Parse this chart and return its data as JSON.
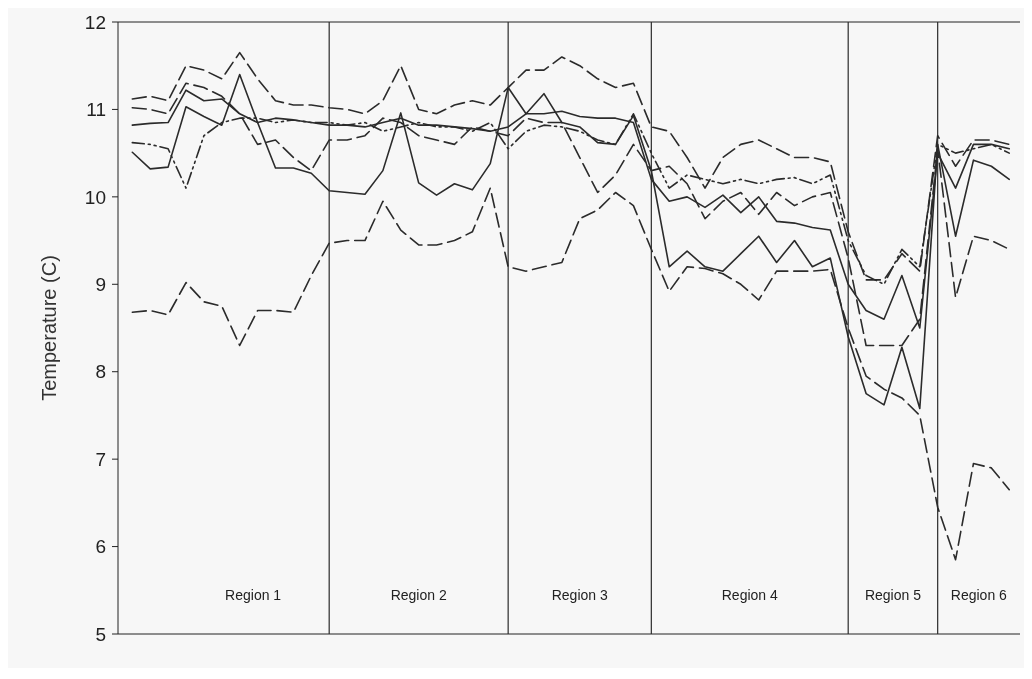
{
  "chart_data": {
    "type": "line",
    "ylabel": "Temperature (C)",
    "ylim": [
      5,
      12
    ],
    "yticks": [
      5,
      6,
      7,
      8,
      9,
      10,
      11,
      12
    ],
    "grid": "x",
    "marker": "none",
    "categories": [
      null,
      null,
      null,
      null,
      null,
      null,
      null,
      null,
      null,
      null,
      null,
      null,
      null,
      null,
      null,
      null,
      null,
      null,
      null,
      null,
      null,
      null,
      null,
      null,
      null,
      null,
      null,
      null,
      null,
      null,
      null,
      null,
      null,
      null,
      null,
      null,
      null,
      null,
      null,
      null,
      null,
      null,
      null,
      null,
      null,
      null,
      null,
      null,
      null,
      null
    ],
    "series": [
      {
        "color": "#2b2b2b",
        "line_style": "solid",
        "values": [
          10.51,
          10.32,
          10.34,
          11.03,
          10.92,
          10.82,
          11.4,
          10.85,
          10.33,
          10.33,
          10.27,
          10.07,
          10.05,
          10.03,
          10.3,
          10.96,
          10.16,
          10.02,
          10.15,
          10.08,
          10.38,
          11.25,
          10.95,
          11.18,
          10.85,
          10.8,
          10.62,
          10.6,
          10.93,
          10.3,
          9.2,
          9.38,
          9.2,
          9.15,
          9.35,
          9.55,
          9.25,
          9.5,
          9.2,
          9.3,
          8.4,
          7.75,
          7.62,
          8.28,
          7.58,
          10.6,
          9.55,
          10.42,
          10.35,
          10.2
        ]
      },
      {
        "color": "#2b2b2b",
        "line_style": "solid",
        "values": [
          10.82,
          10.84,
          10.85,
          11.22,
          11.1,
          11.12,
          10.95,
          10.85,
          10.9,
          10.88,
          10.85,
          10.82,
          10.82,
          10.8,
          10.85,
          10.9,
          10.82,
          10.82,
          10.8,
          10.78,
          10.75,
          10.8,
          10.95,
          10.95,
          10.98,
          10.92,
          10.9,
          10.9,
          10.85,
          10.2,
          9.95,
          10.0,
          9.88,
          10.02,
          9.82,
          10.0,
          9.72,
          9.7,
          9.65,
          9.62,
          9.0,
          8.7,
          8.6,
          9.1,
          8.5,
          10.5,
          10.1,
          10.6,
          10.6,
          10.55
        ]
      },
      {
        "color": "#2b2b2b",
        "line_style": "dashed",
        "values": [
          11.12,
          11.15,
          11.1,
          11.5,
          11.45,
          11.35,
          11.65,
          11.35,
          11.1,
          11.05,
          11.05,
          11.02,
          11.0,
          10.95,
          11.1,
          11.5,
          11.0,
          10.95,
          11.05,
          11.1,
          11.05,
          11.25,
          11.45,
          11.45,
          11.6,
          11.5,
          11.35,
          11.25,
          11.3,
          10.8,
          10.75,
          10.45,
          10.1,
          10.45,
          10.6,
          10.65,
          10.55,
          10.45,
          10.45,
          10.4,
          9.6,
          9.05,
          9.05,
          9.35,
          9.15,
          10.7,
          10.35,
          10.65,
          10.65,
          10.6
        ]
      },
      {
        "color": "#2b2b2b",
        "line_style": "dashed",
        "values": [
          8.68,
          8.7,
          8.65,
          9.02,
          8.8,
          8.75,
          8.3,
          8.7,
          8.7,
          8.68,
          9.1,
          9.47,
          9.5,
          9.5,
          9.95,
          9.62,
          9.45,
          9.45,
          9.5,
          9.6,
          10.1,
          9.2,
          9.15,
          9.2,
          9.25,
          9.75,
          9.85,
          10.05,
          9.9,
          9.4,
          8.92,
          9.2,
          9.18,
          9.12,
          9.0,
          8.82,
          9.15,
          9.15,
          9.15,
          9.17,
          8.5,
          7.95,
          7.8,
          7.7,
          7.5,
          6.45,
          5.85,
          6.95,
          6.9,
          6.65
        ]
      },
      {
        "color": "#2b2b2b",
        "line_style": "dotted",
        "values": [
          10.62,
          10.6,
          10.55,
          10.1,
          10.7,
          10.85,
          10.9,
          10.9,
          10.85,
          10.88,
          10.85,
          10.85,
          10.82,
          10.85,
          10.75,
          10.8,
          10.85,
          10.8,
          10.8,
          10.75,
          10.85,
          10.55,
          10.75,
          10.82,
          10.8,
          10.75,
          10.65,
          10.6,
          10.95,
          10.5,
          10.1,
          10.25,
          10.2,
          10.15,
          10.2,
          10.15,
          10.2,
          10.22,
          10.15,
          10.25,
          9.5,
          9.1,
          9.0,
          9.4,
          9.2,
          10.6,
          10.5,
          10.55,
          10.6,
          10.5
        ]
      },
      {
        "color": "#2b2b2b",
        "line_style": "dashed",
        "values": [
          11.02,
          11.0,
          10.95,
          11.3,
          11.25,
          11.15,
          10.95,
          10.6,
          10.65,
          10.45,
          10.3,
          10.65,
          10.65,
          10.7,
          10.9,
          10.85,
          10.7,
          10.65,
          10.6,
          10.8,
          10.75,
          10.7,
          10.9,
          10.85,
          10.85,
          10.45,
          10.05,
          10.25,
          10.6,
          10.3,
          10.35,
          10.15,
          9.75,
          9.95,
          10.05,
          9.8,
          10.05,
          9.9,
          10.0,
          10.05,
          9.3,
          8.3,
          8.3,
          8.3,
          8.6,
          10.55,
          8.85,
          9.55,
          9.5,
          9.4
        ]
      }
    ],
    "annotations": [
      "Region 1",
      "Region 2",
      "Region 3",
      "Region 4",
      "Region 5",
      "Region 6"
    ]
  }
}
